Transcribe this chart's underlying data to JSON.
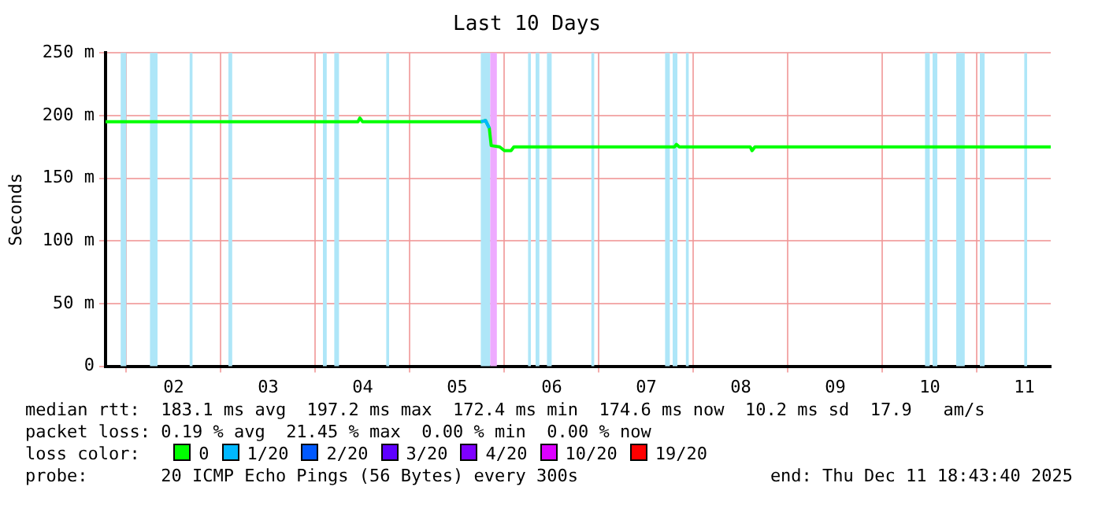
{
  "chart_data": {
    "type": "line",
    "title": "Last 10 Days",
    "ylabel": "Seconds",
    "legend_title": "loss color:",
    "legend": "bottom",
    "grid": true,
    "marker": "none",
    "line_style": "solid",
    "xlim": [
      1.78,
      11.78
    ],
    "xticks": [
      {
        "value": 2,
        "label": null
      },
      {
        "value": 2.5,
        "label": "02"
      },
      {
        "value": 3,
        "label": null
      },
      {
        "value": 3.5,
        "label": "03"
      },
      {
        "value": 4,
        "label": null
      },
      {
        "value": 4.5,
        "label": "04"
      },
      {
        "value": 5,
        "label": null
      },
      {
        "value": 5.5,
        "label": "05"
      },
      {
        "value": 6,
        "label": null
      },
      {
        "value": 6.5,
        "label": "06"
      },
      {
        "value": 7,
        "label": null
      },
      {
        "value": 7.5,
        "label": "07"
      },
      {
        "value": 8,
        "label": null
      },
      {
        "value": 8.5,
        "label": "08"
      },
      {
        "value": 9,
        "label": null
      },
      {
        "value": 9.5,
        "label": "09"
      },
      {
        "value": 10,
        "label": null
      },
      {
        "value": 10.5,
        "label": "10"
      },
      {
        "value": 11,
        "label": null
      },
      {
        "value": 11.5,
        "label": "11"
      }
    ],
    "ylim": [
      0,
      250
    ],
    "yticks": [
      0,
      {
        "value": 50,
        "label": "50 m"
      },
      {
        "value": 100,
        "label": "100 m"
      },
      {
        "value": 150,
        "label": "150 m"
      },
      {
        "value": 200,
        "label": "200 m"
      },
      {
        "value": 250,
        "label": "250 m"
      }
    ],
    "series": [
      {
        "name": "0",
        "color": "#00ff00",
        "x": [
          1.78,
          4.45,
          4.47,
          4.5,
          5.75,
          5.8,
          5.84,
          5.86,
          5.95,
          6.0,
          6.07,
          6.1,
          7.8,
          7.82,
          7.85,
          8.6,
          8.62,
          8.65,
          11.78
        ],
        "values": [
          195,
          195,
          198,
          195,
          195,
          196,
          190,
          176,
          175,
          172,
          172,
          175,
          175,
          177,
          175,
          175,
          172,
          175,
          175
        ]
      },
      {
        "name": "1/20",
        "color": "#00b8ff",
        "x": [
          5.75,
          5.8,
          5.84
        ],
        "values": [
          195,
          196,
          190
        ]
      },
      {
        "name": "2/20",
        "color": "#0059ff"
      },
      {
        "name": "3/20",
        "color": "#5e00ff"
      },
      {
        "name": "4/20",
        "color": "#7e00ff"
      },
      {
        "name": "10/20",
        "color": "#dd00ff"
      },
      {
        "name": "19/20",
        "color": "#ff0000"
      }
    ],
    "bands": [
      {
        "axis": "x",
        "from": 1.94,
        "to": 2.0,
        "color": "#aee6f8"
      },
      {
        "axis": "x",
        "from": 2.25,
        "to": 2.33,
        "color": "#aee6f8"
      },
      {
        "axis": "x",
        "from": 2.67,
        "to": 2.7,
        "color": "#aee6f8"
      },
      {
        "axis": "x",
        "from": 3.08,
        "to": 3.12,
        "color": "#aee6f8"
      },
      {
        "axis": "x",
        "from": 4.08,
        "to": 4.12,
        "color": "#aee6f8"
      },
      {
        "axis": "x",
        "from": 4.2,
        "to": 4.25,
        "color": "#aee6f8"
      },
      {
        "axis": "x",
        "from": 4.75,
        "to": 4.78,
        "color": "#aee6f8"
      },
      {
        "axis": "x",
        "from": 5.75,
        "to": 5.85,
        "color": "#aee6f8"
      },
      {
        "axis": "x",
        "from": 5.85,
        "to": 5.92,
        "color": "#eeaaff"
      },
      {
        "axis": "x",
        "from": 6.25,
        "to": 6.28,
        "color": "#aee6f8"
      },
      {
        "axis": "x",
        "from": 6.33,
        "to": 6.37,
        "color": "#aee6f8"
      },
      {
        "axis": "x",
        "from": 6.45,
        "to": 6.5,
        "color": "#aee6f8"
      },
      {
        "axis": "x",
        "from": 6.92,
        "to": 6.95,
        "color": "#aee6f8"
      },
      {
        "axis": "x",
        "from": 7.7,
        "to": 7.75,
        "color": "#aee6f8"
      },
      {
        "axis": "x",
        "from": 7.78,
        "to": 7.83,
        "color": "#aee6f8"
      },
      {
        "axis": "x",
        "from": 7.92,
        "to": 7.95,
        "color": "#aee6f8"
      },
      {
        "axis": "x",
        "from": 10.45,
        "to": 10.5,
        "color": "#aee6f8"
      },
      {
        "axis": "x",
        "from": 10.53,
        "to": 10.58,
        "color": "#aee6f8"
      },
      {
        "axis": "x",
        "from": 10.78,
        "to": 10.87,
        "color": "#aee6f8"
      },
      {
        "axis": "x",
        "from": 11.03,
        "to": 11.08,
        "color": "#aee6f8"
      },
      {
        "axis": "x",
        "from": 11.5,
        "to": 11.53,
        "color": "#aee6f8"
      }
    ],
    "annotations": [
      "median rtt:  183.1 ms avg  197.2 ms max  172.4 ms min  174.6 ms now  10.2 ms sd  17.9   am/s",
      "packet loss: 0.19 % avg  21.45 % max  0.00 % min  0.00 % now",
      "probe:       20 ICMP Echo Pings (56 Bytes) every 300s",
      "end: Thu Dec 11 18:43:40 2025"
    ]
  }
}
